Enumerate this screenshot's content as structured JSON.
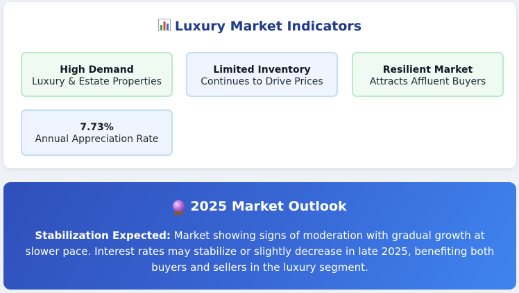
{
  "indicators": {
    "title": "Luxury Market Indicators",
    "title_icon": "bar-chart-icon",
    "cards": [
      {
        "title": "High Demand",
        "subtitle": "Luxury & Estate Properties",
        "accent": "#effbf2"
      },
      {
        "title": "Limited Inventory",
        "subtitle": "Continues to Drive Prices",
        "accent": "#eef5fe"
      },
      {
        "title": "Resilient Market",
        "subtitle": "Attracts Affluent Buyers",
        "accent": "#effbf2"
      },
      {
        "title": "7.73%",
        "subtitle": "Annual Appreciation Rate",
        "accent": "#eef5fe"
      }
    ]
  },
  "outlook": {
    "title": "2025 Market Outlook",
    "title_icon": "crystal-ball-icon",
    "lead": "Stabilization Expected:",
    "text": " Market showing signs of moderation with gradual growth at slower pace. Interest rates may stabilize or slightly decrease in late 2025, benefiting both buyers and sellers in the luxury segment.",
    "gradient": [
      "#2f4fba",
      "#3f84f0"
    ]
  }
}
